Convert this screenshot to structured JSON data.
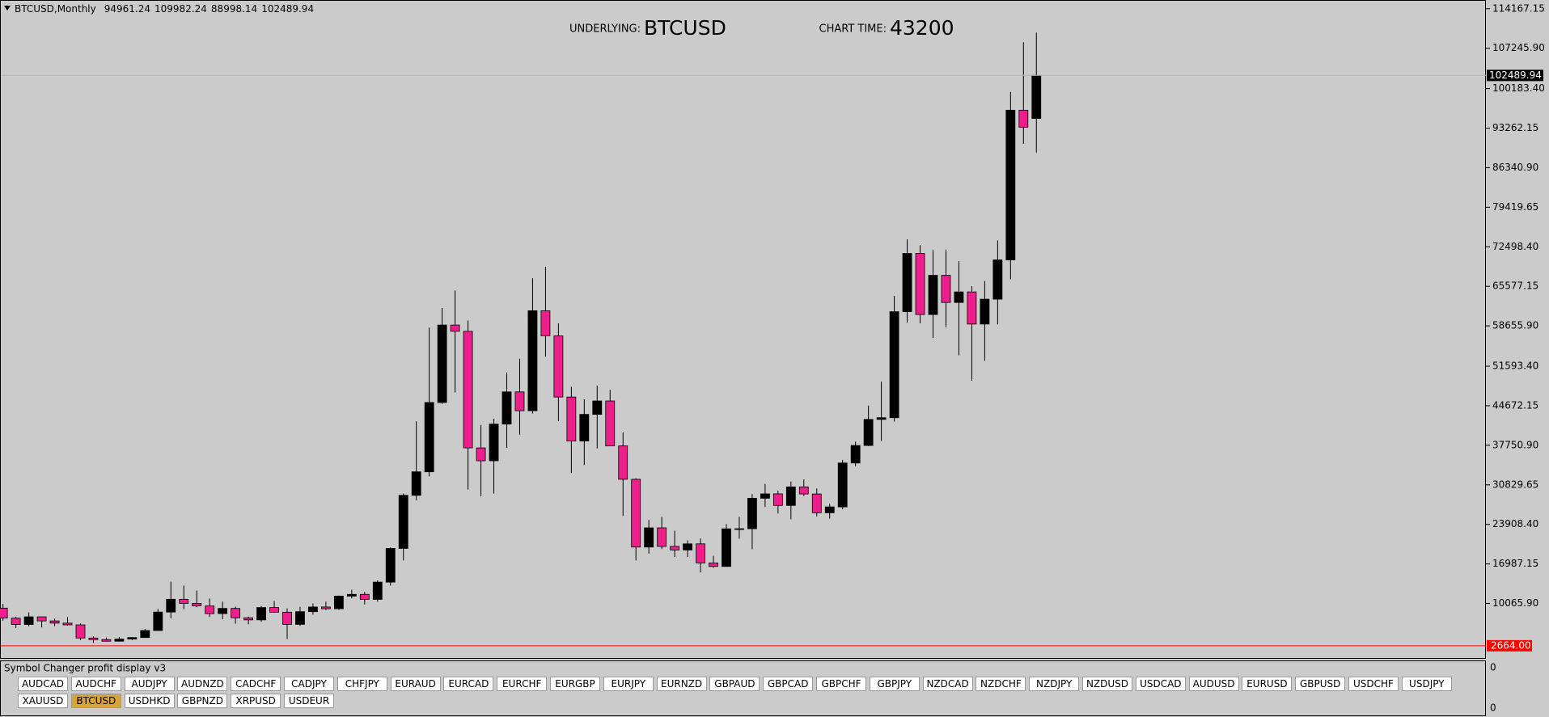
{
  "chart_data": {
    "type": "candlestick",
    "symbol_label": "BTCUSD,Monthly",
    "underlying_label": "UNDERLYING:",
    "underlying": "BTCUSD",
    "chart_time_label": "CHART TIME:",
    "chart_time": "43200",
    "up_color": "#000000",
    "down_color": "#f01e8c",
    "open": [
      9245,
      7495,
      6390,
      7730,
      7010,
      6625,
      6320,
      4020,
      3740,
      3460,
      3830,
      4100,
      5330,
      8560,
      10800,
      10080,
      9630,
      8290,
      9200,
      7560,
      7190,
      9350,
      8540,
      6410,
      8630,
      9450,
      9140,
      11350,
      11660,
      10780,
      13800,
      19700,
      28990,
      33110,
      45240,
      58800,
      57700,
      37300,
      35040,
      41460,
      47100,
      43800,
      61300,
      56900,
      46200,
      38500,
      43160,
      45510,
      37640,
      31800,
      19940,
      23300,
      20050,
      19430,
      20500,
      17160,
      16540,
      23130,
      23150,
      28480,
      29250,
      27220,
      30470,
      29230,
      25940,
      26970,
      34650,
      37720,
      42280,
      42580,
      61130,
      71330,
      60640,
      67500,
      62750,
      64600,
      58970,
      63330,
      70200,
      96400,
      94961.24
    ],
    "high": [
      9990,
      7760,
      8500,
      7760,
      7410,
      7680,
      6580,
      4310,
      4100,
      4200,
      4150,
      5600,
      9080,
      13880,
      13200,
      12330,
      10930,
      10400,
      9510,
      7750,
      9600,
      10500,
      9200,
      9470,
      10070,
      10380,
      11440,
      12480,
      12090,
      14100,
      19870,
      29300,
      41950,
      58350,
      61780,
      64850,
      59600,
      41300,
      42400,
      50500,
      52900,
      67000,
      69000,
      59100,
      47990,
      45800,
      48200,
      47450,
      40000,
      31970,
      24670,
      25200,
      22800,
      21100,
      21450,
      18400,
      23950,
      25250,
      29200,
      31000,
      29820,
      31400,
      31800,
      30200,
      27500,
      35200,
      38400,
      44700,
      48900,
      63900,
      73800,
      72800,
      71950,
      72000,
      70000,
      65600,
      66500,
      73600,
      99600,
      108300,
      109982.24
    ],
    "low": [
      7050,
      5750,
      6070,
      5880,
      6100,
      6200,
      3650,
      3150,
      3400,
      3390,
      3670,
      4080,
      5350,
      7450,
      9070,
      9400,
      7720,
      7300,
      6520,
      6430,
      6860,
      8450,
      3850,
      6150,
      8100,
      8900,
      8980,
      10950,
      9880,
      10380,
      13200,
      17600,
      28130,
      32300,
      45000,
      47000,
      30000,
      28800,
      29300,
      37300,
      39600,
      43300,
      53250,
      42000,
      32900,
      34300,
      37200,
      37600,
      25400,
      17600,
      18800,
      19600,
      18200,
      18200,
      15500,
      16300,
      16500,
      21400,
      19570,
      26950,
      25800,
      24800,
      28860,
      25300,
      24900,
      26550,
      34100,
      37600,
      38500,
      41900,
      59200,
      59100,
      56550,
      58400,
      53500,
      49050,
      52550,
      58900,
      66800,
      90500,
      88998.14
    ],
    "close": [
      7495,
      6390,
      7730,
      7010,
      6625,
      6320,
      4020,
      3740,
      3460,
      3830,
      4100,
      5330,
      8560,
      10800,
      10080,
      9630,
      8290,
      9200,
      7560,
      7190,
      9350,
      8540,
      6410,
      8630,
      9450,
      9140,
      11350,
      11660,
      10780,
      13800,
      19700,
      28990,
      33110,
      45240,
      58800,
      57700,
      37300,
      35040,
      41460,
      47100,
      43800,
      61300,
      56900,
      46200,
      38500,
      43160,
      45510,
      37640,
      31800,
      19940,
      23300,
      20050,
      19430,
      20500,
      17160,
      16540,
      23130,
      23150,
      28480,
      29250,
      27220,
      30470,
      29230,
      25940,
      26970,
      34650,
      37720,
      42280,
      42580,
      61130,
      71330,
      60640,
      67500,
      62750,
      64600,
      58970,
      63330,
      70200,
      96400,
      93430,
      102489.94
    ],
    "ylim": [
      380,
      115550
    ],
    "yticks": [
      {
        "value": 114167.15,
        "label": "114167.15"
      },
      {
        "value": 107245.9,
        "label": "107245.90"
      },
      {
        "value": 100183.4,
        "label": "100183.40"
      },
      {
        "value": 93262.15,
        "label": "93262.15"
      },
      {
        "value": 86340.9,
        "label": "86340.90"
      },
      {
        "value": 79419.65,
        "label": "79419.65"
      },
      {
        "value": 72498.4,
        "label": "72498.40"
      },
      {
        "value": 65577.15,
        "label": "65577.15"
      },
      {
        "value": 58655.9,
        "label": "58655.90"
      },
      {
        "value": 51593.4,
        "label": "51593.40"
      },
      {
        "value": 44672.15,
        "label": "44672.15"
      },
      {
        "value": 37750.9,
        "label": "37750.90"
      },
      {
        "value": 30829.65,
        "label": "30829.65"
      },
      {
        "value": 23908.4,
        "label": "23908.40"
      },
      {
        "value": 16987.15,
        "label": "16987.15"
      },
      {
        "value": 10065.9,
        "label": "10065.90"
      }
    ],
    "level": {
      "value": 2664,
      "label": "2664.00"
    },
    "level_color": "#ff0000"
  },
  "indicator": {
    "title": "Symbol Changer profit display v3",
    "axis_labels": [
      "0",
      "0"
    ]
  },
  "symbol_buttons": {
    "rows": [
      [
        "AUDCAD",
        "AUDCHF",
        "AUDJPY",
        "AUDNZD",
        "CADCHF",
        "CADJPY",
        "CHFJPY",
        "EURAUD",
        "EURCAD",
        "EURCHF",
        "EURGBP",
        "EURJPY",
        "EURNZD",
        "GBPAUD",
        "GBPCAD",
        "GBPCHF",
        "GBPJPY",
        "NZDCAD",
        "NZDCHF",
        "NZDJPY",
        "NZDUSD",
        "USDCAD",
        "AUDUSD",
        "EURUSD",
        "GBPUSD",
        "USDCHF",
        "USDJPY"
      ],
      [
        "XAUUSD",
        "BTCUSD",
        "USDHKD",
        "GBPNZD",
        "XRPUSD",
        "USDEUR"
      ]
    ],
    "selected": "BTCUSD"
  }
}
